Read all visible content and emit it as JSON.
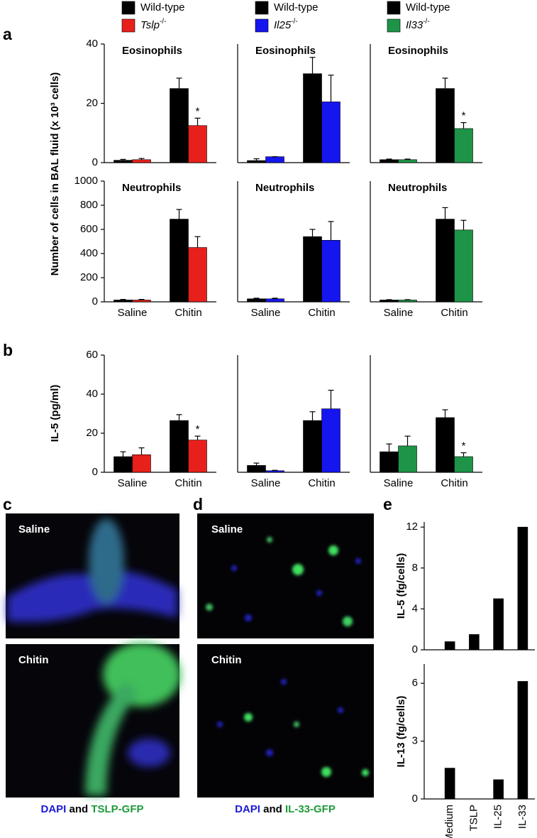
{
  "panel_labels": [
    "a",
    "b",
    "c",
    "d",
    "e"
  ],
  "chart_data": [
    {
      "type": "bar",
      "title": "Eosinophils",
      "ylabel": "Number of cells in BAL fluid (x 10³ cells)",
      "ylim": [
        0,
        40
      ],
      "yticks": [
        0,
        20,
        40
      ],
      "series": [
        {
          "name": "Wild-type",
          "color": "#000000",
          "values": [
            0.8,
            25
          ],
          "errors": [
            0.3,
            3.5
          ]
        },
        {
          "name": "Tslp",
          "sup": "-/-",
          "color": "#e8201c",
          "values": [
            1.0,
            12.5
          ],
          "errors": [
            0.4,
            2.5
          ]
        }
      ],
      "annotations": [
        {
          "text": "*",
          "series": 1,
          "index": 1
        }
      ]
    },
    {
      "type": "bar",
      "title": "Eosinophils",
      "ylim": [
        0,
        40
      ],
      "series": [
        {
          "name": "Wild-type",
          "color": "#000000",
          "values": [
            0.7,
            30
          ],
          "errors": [
            0.6,
            5.5
          ]
        },
        {
          "name": "Il25",
          "sup": "-/-",
          "color": "#1515f0",
          "values": [
            2.0,
            20.5
          ],
          "errors": [
            0,
            9
          ]
        }
      ]
    },
    {
      "type": "bar",
      "title": "Eosinophils",
      "ylim": [
        0,
        40
      ],
      "series": [
        {
          "name": "Wild-type",
          "color": "#000000",
          "values": [
            1.0,
            25
          ],
          "errors": [
            0.2,
            3.5
          ]
        },
        {
          "name": "Il33",
          "sup": "-/-",
          "color": "#1e9448",
          "values": [
            1.0,
            11.5
          ],
          "errors": [
            0.2,
            2
          ]
        }
      ],
      "annotations": [
        {
          "text": "*",
          "series": 1,
          "index": 1
        }
      ]
    },
    {
      "type": "bar",
      "title": "Neutrophils",
      "categories": [
        "Saline",
        "Chitin"
      ],
      "ylim": [
        0,
        1000
      ],
      "yticks": [
        0,
        200,
        400,
        600,
        800,
        1000
      ],
      "series": [
        {
          "color": "#000000",
          "values": [
            15,
            685
          ],
          "errors": [
            5,
            80
          ]
        },
        {
          "color": "#e8201c",
          "values": [
            15,
            450
          ],
          "errors": [
            5,
            90
          ]
        }
      ]
    },
    {
      "type": "bar",
      "title": "Neutrophils",
      "categories": [
        "Saline",
        "Chitin"
      ],
      "ylim": [
        0,
        1000
      ],
      "series": [
        {
          "color": "#000000",
          "values": [
            25,
            540
          ],
          "errors": [
            5,
            60
          ]
        },
        {
          "color": "#1515f0",
          "values": [
            25,
            510
          ],
          "errors": [
            5,
            155
          ]
        }
      ]
    },
    {
      "type": "bar",
      "title": "Neutrophils",
      "categories": [
        "Saline",
        "Chitin"
      ],
      "ylim": [
        0,
        1000
      ],
      "series": [
        {
          "color": "#000000",
          "values": [
            15,
            685
          ],
          "errors": [
            3,
            95
          ]
        },
        {
          "color": "#1e9448",
          "values": [
            15,
            595
          ],
          "errors": [
            3,
            80
          ]
        }
      ]
    },
    {
      "type": "bar",
      "ylabel": "IL-5 (pg/ml)",
      "categories": [
        "Saline",
        "Chitin"
      ],
      "ylim": [
        0,
        60
      ],
      "yticks": [
        0,
        20,
        40,
        60
      ],
      "series": [
        {
          "color": "#000000",
          "values": [
            8,
            26.5
          ],
          "errors": [
            2.5,
            3
          ]
        },
        {
          "color": "#e8201c",
          "values": [
            9,
            16.5
          ],
          "errors": [
            3.5,
            2
          ]
        }
      ],
      "annotations": [
        {
          "text": "*",
          "series": 1,
          "index": 1
        }
      ]
    },
    {
      "type": "bar",
      "categories": [
        "Saline",
        "Chitin"
      ],
      "ylim": [
        0,
        60
      ],
      "series": [
        {
          "color": "#000000",
          "values": [
            3.5,
            26.5
          ],
          "errors": [
            1.2,
            4.5
          ]
        },
        {
          "color": "#1515f0",
          "values": [
            0.8,
            32.5
          ],
          "errors": [
            0.2,
            9.5
          ]
        }
      ]
    },
    {
      "type": "bar",
      "categories": [
        "Saline",
        "Chitin"
      ],
      "ylim": [
        0,
        60
      ],
      "series": [
        {
          "color": "#000000",
          "values": [
            10.5,
            28
          ],
          "errors": [
            4,
            4
          ]
        },
        {
          "color": "#1e9448",
          "values": [
            13.5,
            8
          ],
          "errors": [
            5,
            2
          ]
        }
      ],
      "annotations": [
        {
          "text": "*",
          "series": 1,
          "index": 1
        }
      ]
    },
    {
      "type": "bar",
      "ylabel": "IL-5 (fg/cells)",
      "ylim": [
        0,
        12.5
      ],
      "yticks": [
        0,
        4,
        8,
        12
      ],
      "series": [
        {
          "color": "#000000",
          "values": [
            0.8,
            1.5,
            5,
            12
          ]
        }
      ]
    },
    {
      "type": "bar",
      "ylabel": "IL-13 (fg/cells)",
      "categories": [
        "Medium",
        "TSLP",
        "IL-25",
        "IL-33"
      ],
      "ylim": [
        0,
        7
      ],
      "yticks": [
        0,
        3,
        6
      ],
      "series": [
        {
          "color": "#000000",
          "values": [
            1.6,
            0,
            1.0,
            6.1
          ]
        }
      ]
    }
  ],
  "images": [
    {
      "label": "Saline"
    },
    {
      "label": "Chitin"
    },
    {
      "label": "Saline"
    },
    {
      "label": "Chitin"
    }
  ],
  "captions": [
    [
      {
        "text": "DAPI",
        "color": "#1a1ad8"
      },
      {
        "text": "and",
        "color": "#000000"
      },
      {
        "text": "TSLP-GFP",
        "color": "#1e9a3a"
      }
    ],
    [
      {
        "text": "DAPI",
        "color": "#1a1ad8"
      },
      {
        "text": "and",
        "color": "#000000"
      },
      {
        "text": "IL-33-GFP",
        "color": "#1e9a3a"
      }
    ]
  ]
}
